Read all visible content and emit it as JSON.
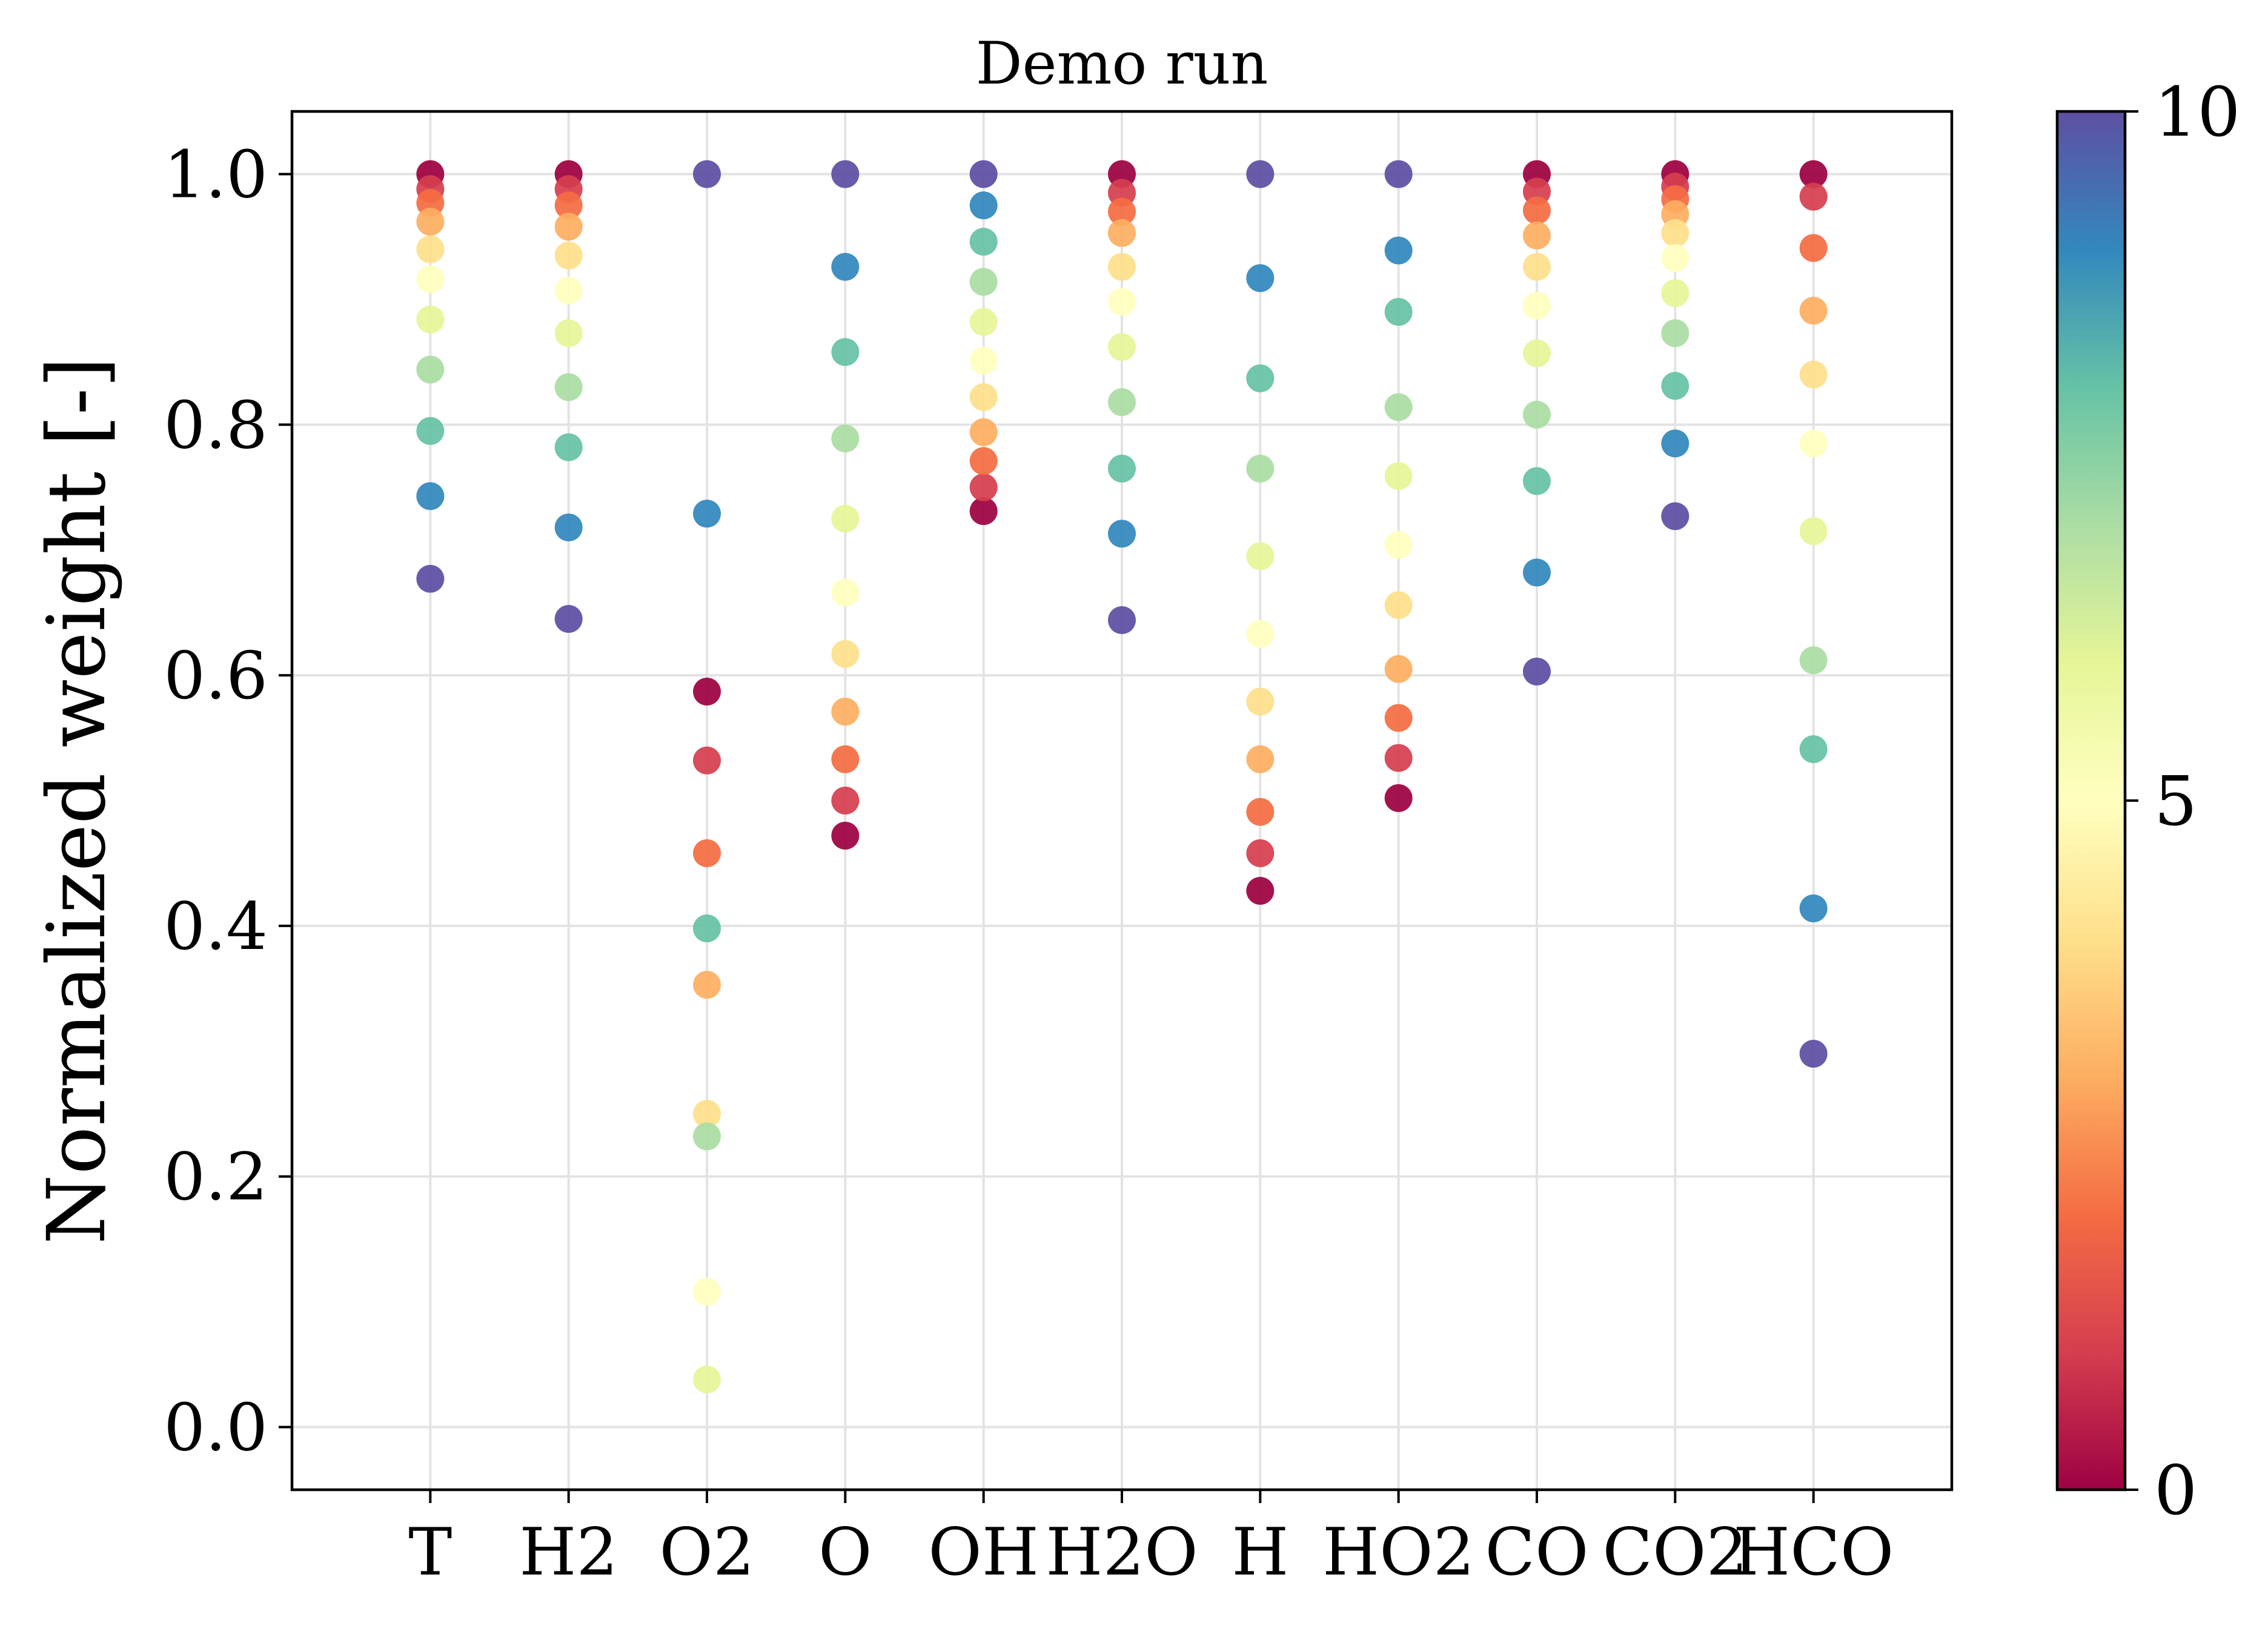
{
  "chart_data": {
    "type": "scatter",
    "title": "Demo run",
    "xlabel": "",
    "ylabel": "Normalized weight [-]",
    "categories": [
      "T",
      "H2",
      "O2",
      "O",
      "OH",
      "H2O",
      "H",
      "HO2",
      "CO",
      "CO2",
      "HCO"
    ],
    "ylim": [
      -0.05,
      1.05
    ],
    "yticks": [
      0.0,
      0.2,
      0.4,
      0.6,
      0.8,
      1.0
    ],
    "ytick_labels": [
      "0.0",
      "0.2",
      "0.4",
      "0.6",
      "0.8",
      "1.0"
    ],
    "grid": true,
    "colorbar": {
      "colormap": "Spectral",
      "range": [
        0,
        10
      ],
      "ticks": [
        0,
        5,
        10
      ],
      "tick_labels": [
        "0",
        "5",
        "10"
      ],
      "stops": [
        "#9e0142",
        "#d53e4f",
        "#f46d43",
        "#fdae61",
        "#fee08b",
        "#ffffbf",
        "#e6f598",
        "#abdda4",
        "#66c2a5",
        "#3288bd",
        "#5e4fa2"
      ]
    },
    "series_color_values": [
      0,
      1,
      2,
      3,
      4,
      5,
      6,
      7,
      8,
      9,
      10
    ],
    "points": {
      "T": [
        1.0,
        0.988,
        0.977,
        0.962,
        0.94,
        0.916,
        0.884,
        0.844,
        0.795,
        0.743,
        0.677
      ],
      "H2": [
        1.0,
        0.988,
        0.975,
        0.958,
        0.935,
        0.907,
        0.873,
        0.83,
        0.782,
        0.718,
        0.645
      ],
      "O2": [
        0.587,
        0.532,
        0.458,
        0.353,
        0.25,
        0.108,
        0.038,
        0.232,
        0.398,
        0.729,
        1.0
      ],
      "O": [
        0.472,
        0.5,
        0.533,
        0.571,
        0.617,
        0.666,
        0.725,
        0.789,
        0.858,
        0.926,
        1.0
      ],
      "OH": [
        0.731,
        0.75,
        0.771,
        0.794,
        0.822,
        0.851,
        0.882,
        0.914,
        0.946,
        0.975,
        1.0
      ],
      "H2O": [
        1.0,
        0.985,
        0.97,
        0.953,
        0.926,
        0.898,
        0.862,
        0.818,
        0.765,
        0.713,
        0.644
      ],
      "H": [
        0.428,
        0.458,
        0.491,
        0.533,
        0.579,
        0.633,
        0.695,
        0.765,
        0.837,
        0.917,
        1.0
      ],
      "HO2": [
        0.502,
        0.534,
        0.566,
        0.605,
        0.656,
        0.704,
        0.759,
        0.814,
        0.89,
        0.939,
        1.0
      ],
      "CO": [
        1.0,
        0.986,
        0.971,
        0.951,
        0.926,
        0.895,
        0.857,
        0.808,
        0.755,
        0.682,
        0.603
      ],
      "CO2": [
        1.0,
        0.99,
        0.98,
        0.968,
        0.953,
        0.933,
        0.905,
        0.873,
        0.831,
        0.785,
        0.727
      ],
      "HCO": [
        1.0,
        0.982,
        0.941,
        0.891,
        0.84,
        0.785,
        0.715,
        0.612,
        0.541,
        0.414,
        0.298
      ]
    }
  }
}
